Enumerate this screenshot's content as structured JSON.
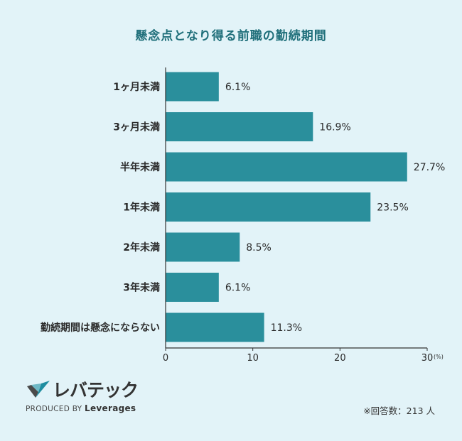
{
  "chart_data": {
    "type": "bar",
    "orientation": "horizontal",
    "title": "懸念点となり得る前職の勤続期間",
    "categories": [
      "1ヶ月未満",
      "3ヶ月未満",
      "半年未満",
      "1年未満",
      "2年未満",
      "3年未満",
      "勤続期間は懸念にならない"
    ],
    "values": [
      6.1,
      16.9,
      27.7,
      23.5,
      8.5,
      6.1,
      11.3
    ],
    "value_labels": [
      "6.1%",
      "16.9%",
      "27.7%",
      "23.5%",
      "8.5%",
      "6.1%",
      "11.3%"
    ],
    "xlim": [
      0,
      30
    ],
    "ticks": [
      0,
      10,
      20,
      30
    ],
    "tick_labels": [
      "0",
      "10",
      "20",
      "30"
    ],
    "unit_label": "(%)",
    "grid": false,
    "bar_color": "#2a8f9c"
  },
  "logo": {
    "name": "レバテック",
    "produced_by": "PRODUCED BY",
    "brand": "Leverages"
  },
  "footnote": "※回答数：213 人",
  "colors": {
    "background": "#e2f3f8",
    "title": "#1f6f7a",
    "bar": "#2a8f9c",
    "logo_dark": "#4a4a4a",
    "logo_teal": "#1e8da0"
  }
}
